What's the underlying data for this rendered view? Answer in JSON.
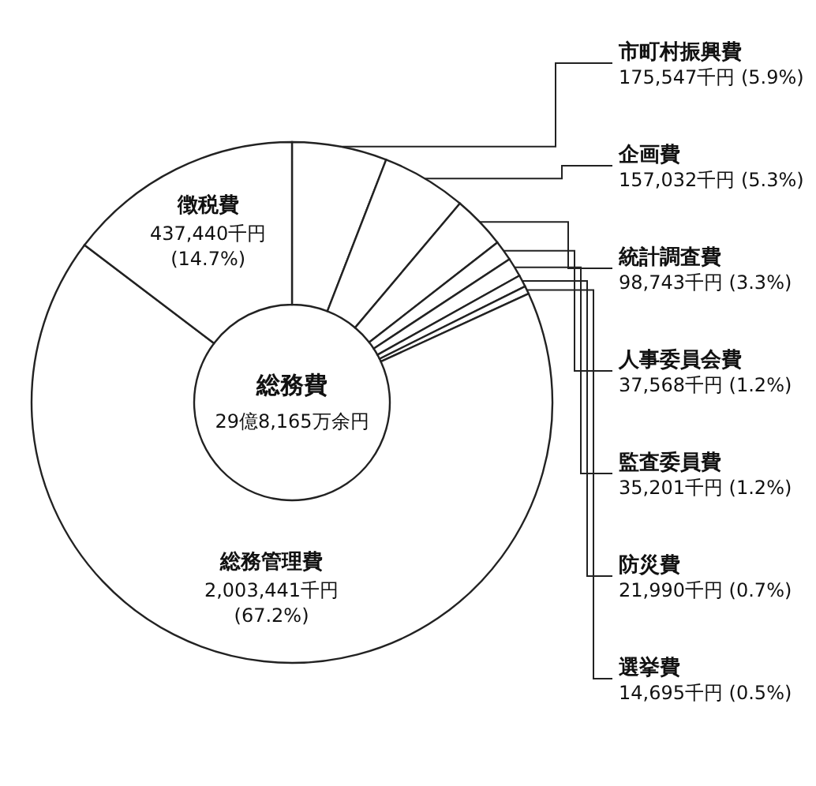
{
  "chart_data": {
    "type": "donut",
    "title": "総務費",
    "subtitle": "29億8,165万余円",
    "categories": [
      "市町村振興費",
      "企画費",
      "統計調査費",
      "人事委員会費",
      "監査委員費",
      "防災費",
      "選挙費",
      "総務管理費",
      "徴税費"
    ],
    "values": [
      175547,
      157032,
      98743,
      37568,
      35201,
      21990,
      14695,
      2003441,
      437440
    ],
    "value_labels": [
      "175,547千円 (5.9%)",
      "157,032千円 (5.3%)",
      "98,743千円 (3.3%)",
      "37,568千円 (1.2%)",
      "35,201千円 (1.2%)",
      "21,990千円 (0.7%)",
      "14,695千円 (0.5%)",
      "2,003,441千円 (67.2%)",
      "437,440千円 (14.7%)"
    ],
    "colors": [
      "#ffffff",
      "#ffffff",
      "#ffffff",
      "#ffffff",
      "#ffffff",
      "#ffffff",
      "#ffffff",
      "#ffffff",
      "#ffffff"
    ]
  }
}
